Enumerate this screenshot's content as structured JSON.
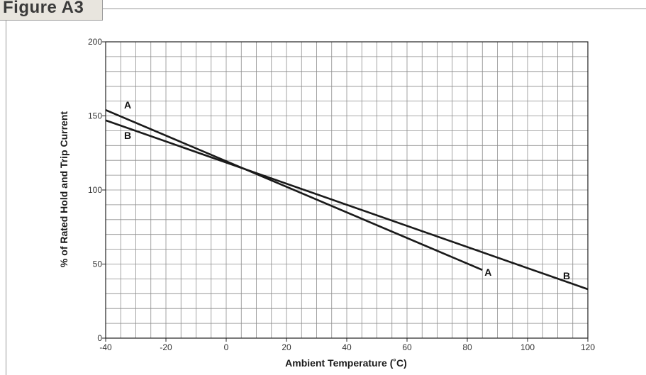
{
  "figure_label": "Figure A3",
  "chart_data": {
    "type": "line",
    "title": "",
    "xlabel": "Ambient Temperature (˚C)",
    "ylabel": "% of Rated Hold and Trip Current",
    "xlim": [
      -40,
      120
    ],
    "ylim": [
      0,
      200
    ],
    "xticks": [
      -40,
      -20,
      0,
      20,
      40,
      60,
      80,
      100,
      120
    ],
    "yticks": [
      0,
      50,
      100,
      150,
      200
    ],
    "x_tick_labels": [
      "-40",
      "-20",
      "0",
      "20",
      "40",
      "60",
      "80",
      "100",
      "120"
    ],
    "y_tick_labels": [
      "0",
      "50",
      "100",
      "150",
      "200"
    ],
    "grid": true,
    "grid_x_minor_step": 5,
    "grid_y_minor_step": 10,
    "series": [
      {
        "name": "A",
        "x": [
          -40,
          85
        ],
        "y": [
          154,
          46
        ]
      },
      {
        "name": "B",
        "x": [
          -40,
          120
        ],
        "y": [
          147,
          33
        ]
      }
    ],
    "legend": "series labels placed on the lines",
    "colors": {
      "line": "#1a1a1a",
      "grid": "#8c8c8c",
      "axis": "#222222"
    }
  }
}
